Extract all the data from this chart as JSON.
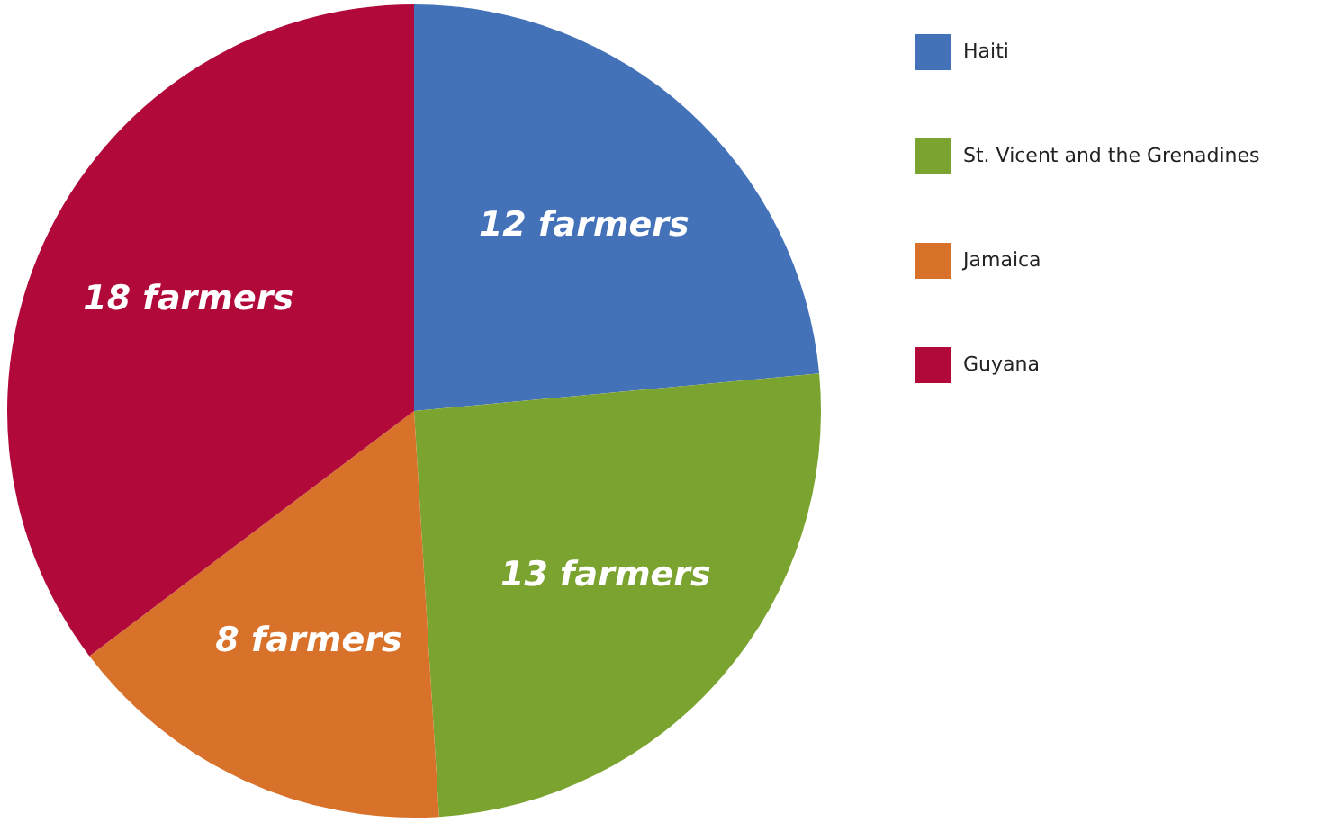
{
  "chart_data": {
    "type": "pie",
    "categories": [
      "Haiti",
      "St. Vicent and the Grenadines",
      "Jamaica",
      "Guyana"
    ],
    "values": [
      12,
      13,
      8,
      18
    ],
    "colors": [
      "#4472b8",
      "#7ba32f",
      "#d8712a",
      "#b0093a"
    ],
    "value_labels": [
      "12 farmers",
      "13 farmers",
      "8 farmers",
      "18 farmers"
    ],
    "legend": "right"
  }
}
